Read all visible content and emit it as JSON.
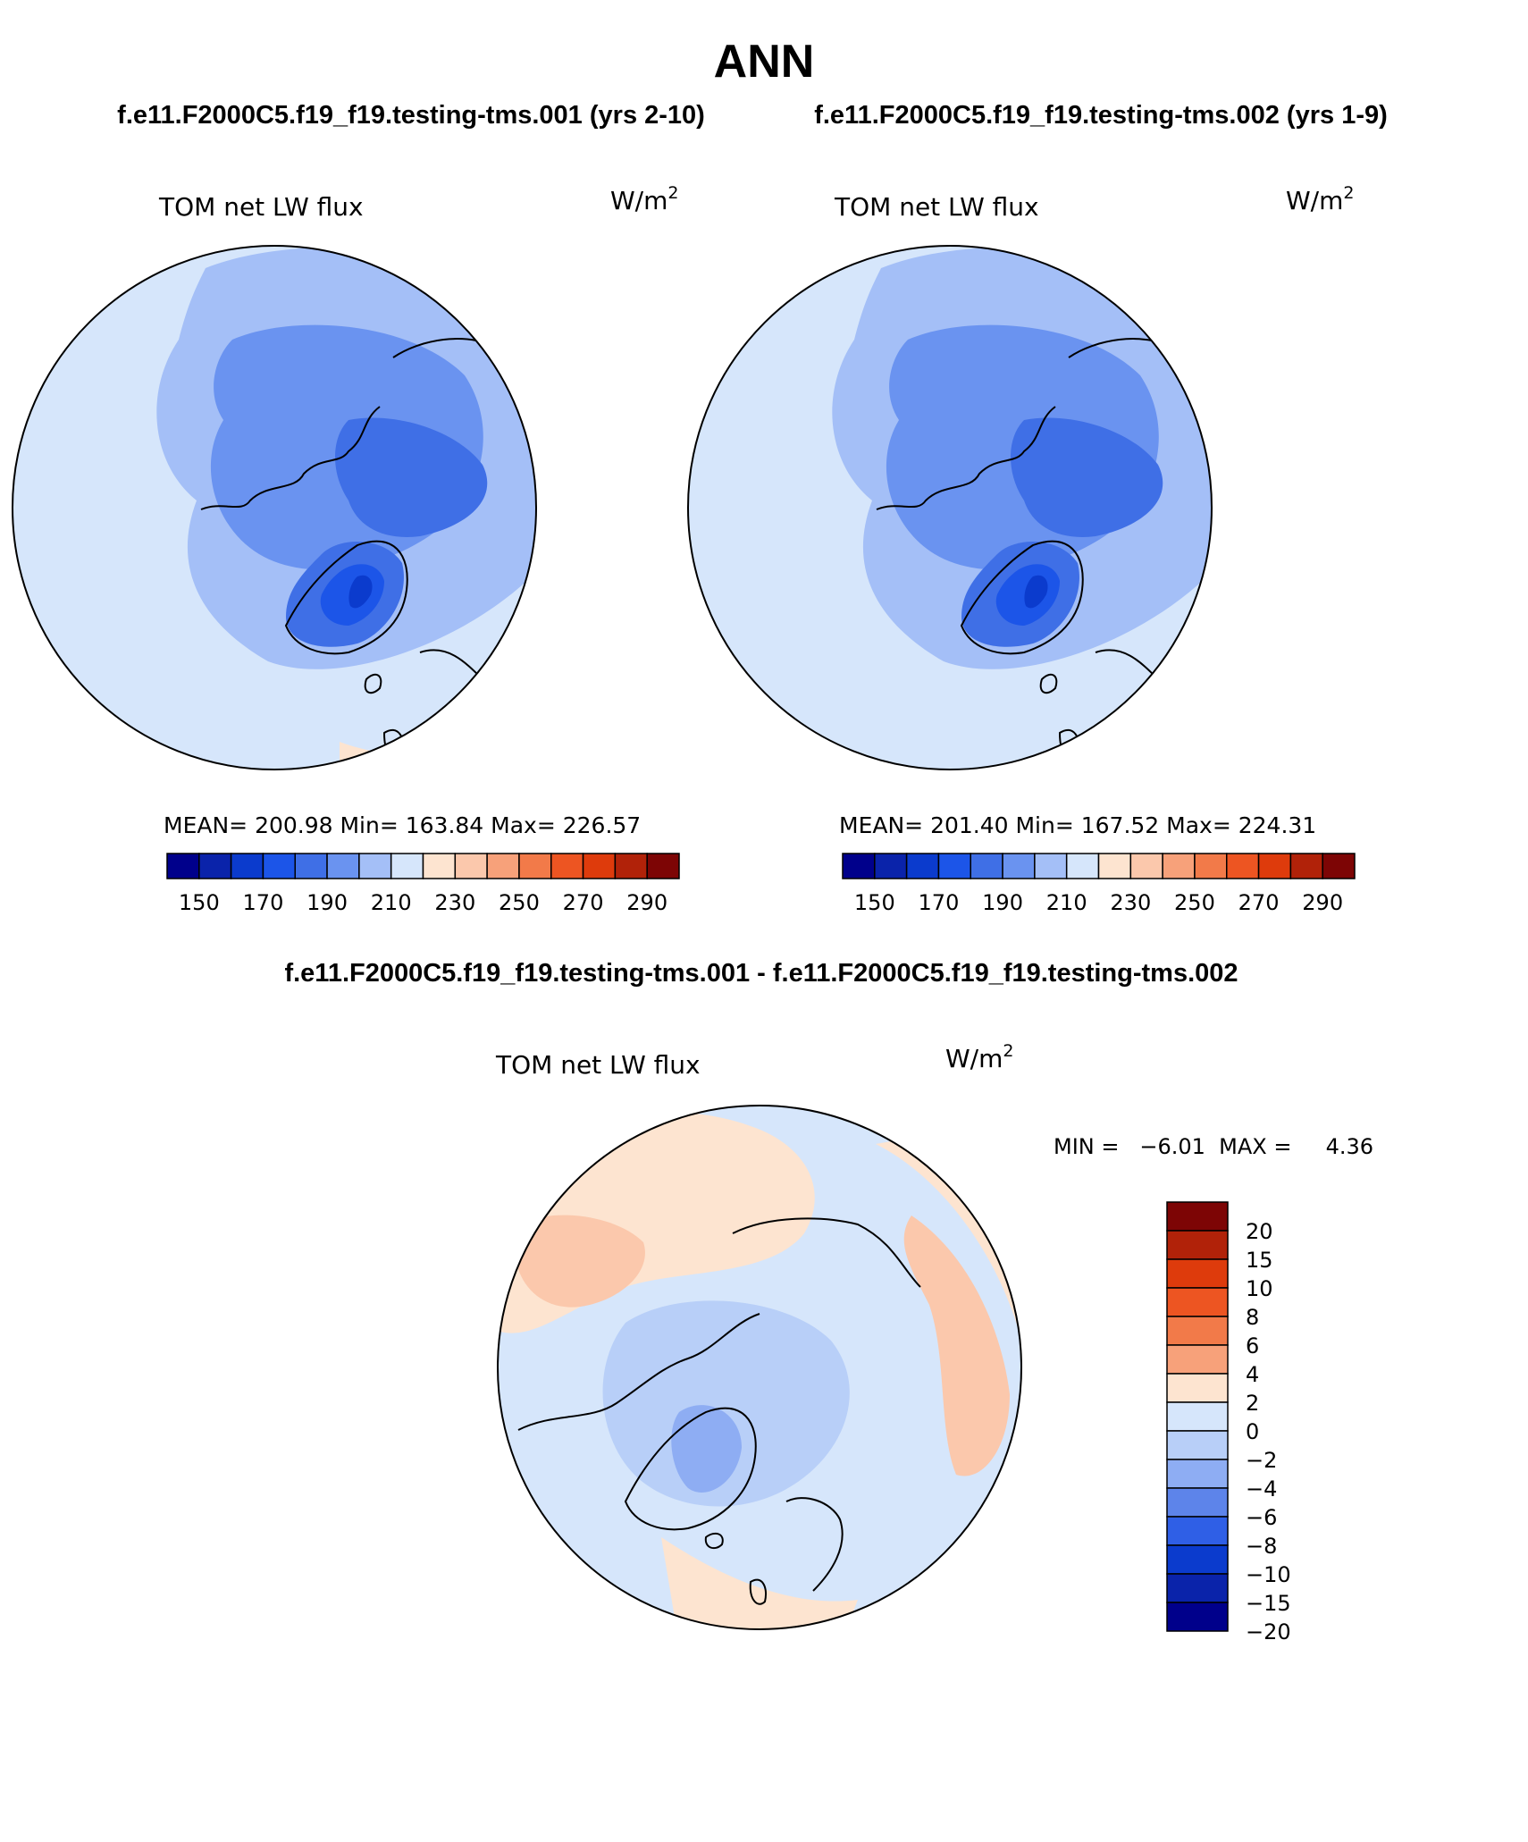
{
  "page_title": "ANN",
  "titles": {
    "left": "f.e11.F2000C5.f19_f19.testing-tms.001 (yrs 2-10)",
    "right": "f.e11.F2000C5.f19_f19.testing-tms.002 (yrs 1-9)",
    "diff": "f.e11.F2000C5.f19_f19.testing-tms.001 - f.e11.F2000C5.f19_f19.testing-tms.002"
  },
  "panels": [
    {
      "variable": "TOM net LW flux",
      "units": "W/m",
      "units_exp": "2",
      "stats": "MEAN= 200.98   Min= 163.84   Max= 226.57"
    },
    {
      "variable": "TOM net LW flux",
      "units": "W/m",
      "units_exp": "2",
      "stats": "MEAN= 201.40   Min= 167.52   Max= 224.31"
    },
    {
      "variable": "TOM net LW flux",
      "units": "W/m",
      "units_exp": "2",
      "stats": "MIN =   −6.01  MAX =     4.36"
    }
  ],
  "chart_data": [
    {
      "type": "heatmap",
      "projection": "north-polar-stereographic",
      "title": "TOM net LW flux",
      "units": "W/m2",
      "case": "f.e11.F2000C5.f19_f19.testing-tms.001 (yrs 2-10)",
      "mean": 200.98,
      "min": 163.84,
      "max": 226.57,
      "colorbar_orientation": "horizontal",
      "colorbar_colors": [
        "#00008b",
        "#0a23aa",
        "#0b3bcd",
        "#1c55e8",
        "#3f6fe6",
        "#6a93f0",
        "#a4bff7",
        "#d6e6fb",
        "#fde4d0",
        "#fbc8ac",
        "#f7a17a",
        "#f27a49",
        "#ed5522",
        "#de3b0c",
        "#b12209",
        "#7d0505"
      ],
      "colorbar_tick_labels": [
        "150",
        "170",
        "190",
        "210",
        "230",
        "250",
        "270",
        "290"
      ]
    },
    {
      "type": "heatmap",
      "projection": "north-polar-stereographic",
      "title": "TOM net LW flux",
      "units": "W/m2",
      "case": "f.e11.F2000C5.f19_f19.testing-tms.002 (yrs 1-9)",
      "mean": 201.4,
      "min": 167.52,
      "max": 224.31,
      "colorbar_orientation": "horizontal",
      "colorbar_colors": [
        "#00008b",
        "#0a23aa",
        "#0b3bcd",
        "#1c55e8",
        "#3f6fe6",
        "#6a93f0",
        "#a4bff7",
        "#d6e6fb",
        "#fde4d0",
        "#fbc8ac",
        "#f7a17a",
        "#f27a49",
        "#ed5522",
        "#de3b0c",
        "#b12209",
        "#7d0505"
      ],
      "colorbar_tick_labels": [
        "150",
        "170",
        "190",
        "210",
        "230",
        "250",
        "270",
        "290"
      ]
    },
    {
      "type": "heatmap",
      "projection": "north-polar-stereographic",
      "title": "TOM net LW flux",
      "units": "W/m2",
      "case": "f.e11.F2000C5.f19_f19.testing-tms.001 - f.e11.F2000C5.f19_f19.testing-tms.002",
      "min": -6.01,
      "max": 4.36,
      "colorbar_orientation": "vertical",
      "colorbar_colors": [
        "#7d0505",
        "#b12209",
        "#de3b0c",
        "#ed5522",
        "#f27a49",
        "#f7a17a",
        "#fde4d0",
        "#d6e6fb",
        "#b8cff8",
        "#8eadf3",
        "#5d84ea",
        "#2f5fe6",
        "#0b3bcd",
        "#0a23aa",
        "#00008b"
      ],
      "colorbar_tick_labels": [
        "20",
        "15",
        "10",
        "8",
        "6",
        "4",
        "2",
        "0",
        "−2",
        "−4",
        "−6",
        "−8",
        "−10",
        "−15",
        "−20"
      ]
    }
  ]
}
